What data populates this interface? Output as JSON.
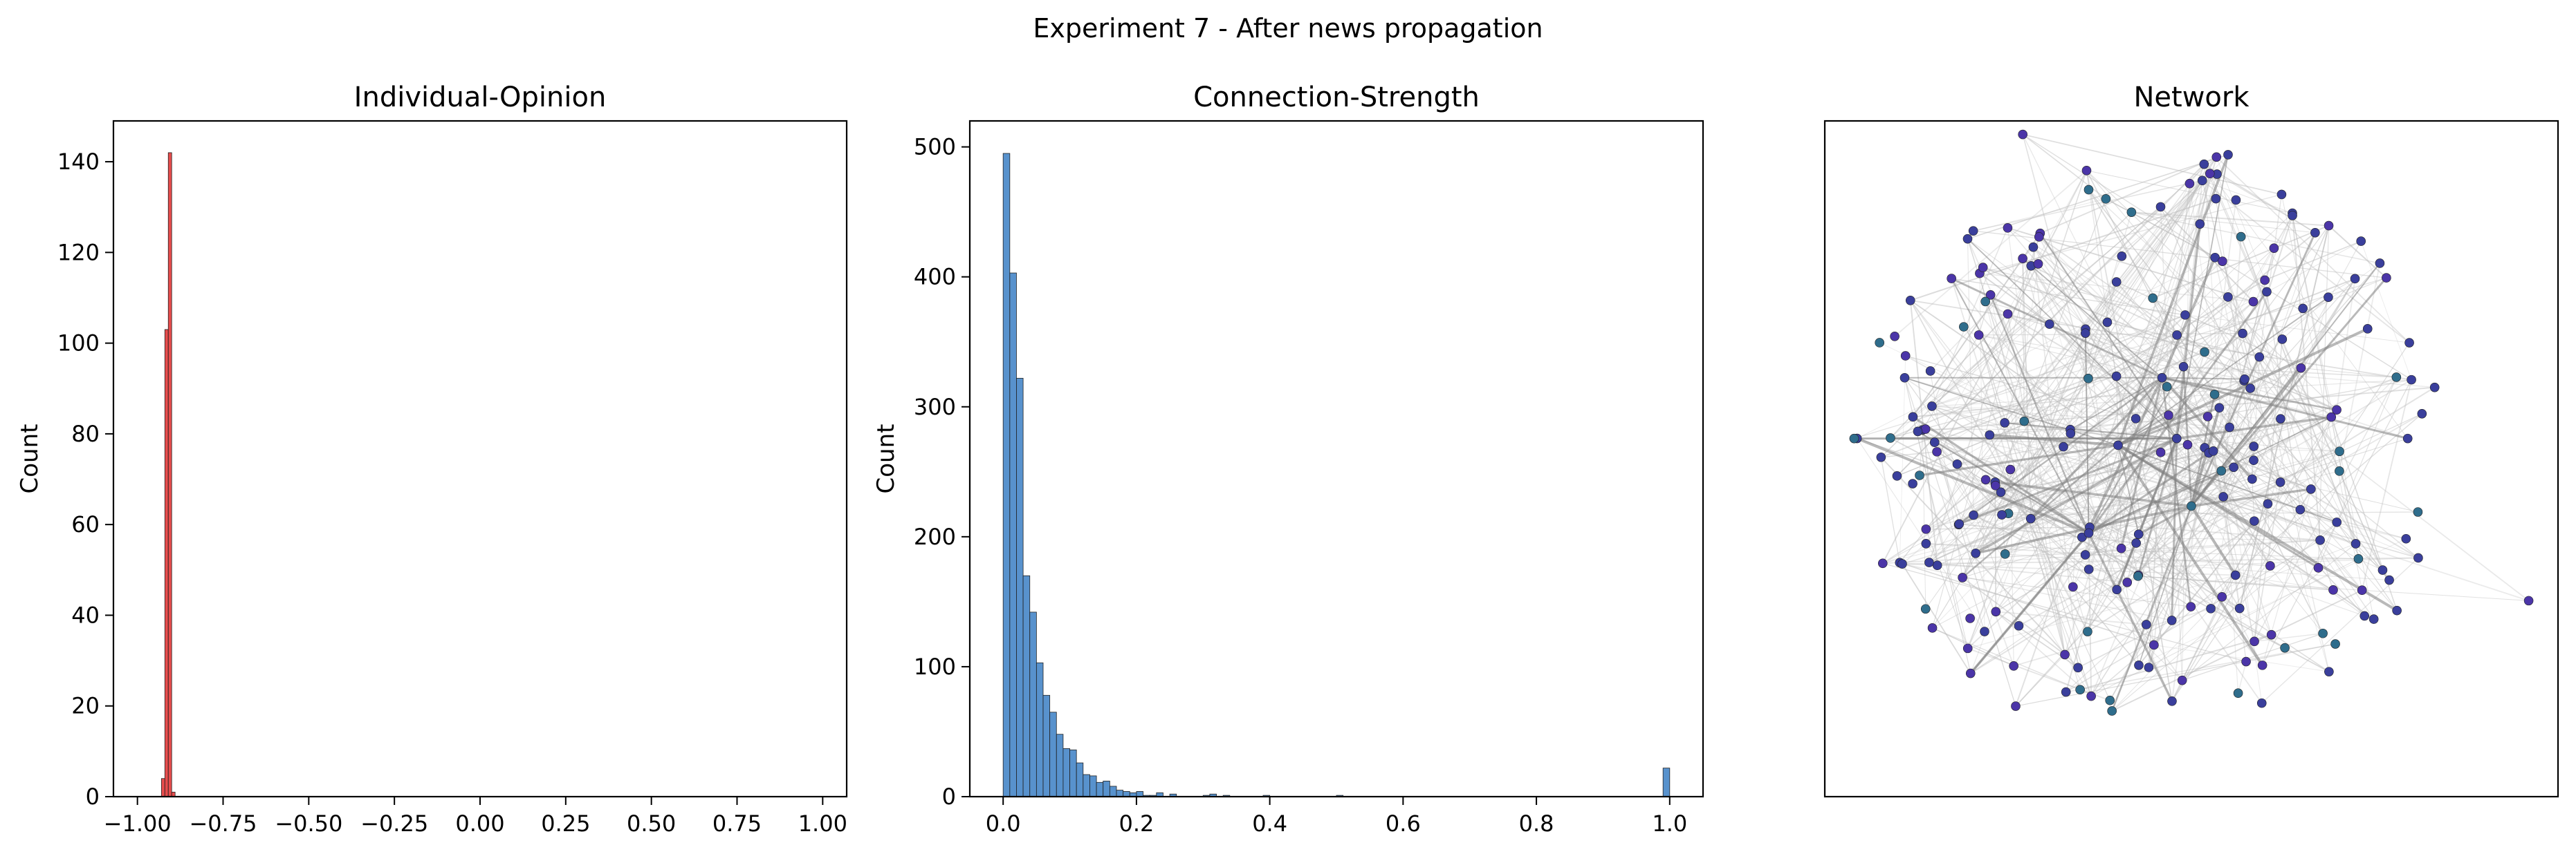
{
  "figure": {
    "title": "Experiment 7 - After news propagation"
  },
  "chart_data": [
    {
      "type": "bar",
      "title": "Individual-Opinion",
      "xlabel": "",
      "ylabel": "Count",
      "xlim": [
        -1.07,
        1.07
      ],
      "ylim": [
        0,
        149
      ],
      "xticks": [
        -1.0,
        -0.75,
        -0.5,
        -0.25,
        0.0,
        0.25,
        0.5,
        0.75,
        1.0
      ],
      "xtick_labels": [
        "−1.00",
        "−0.75",
        "−0.50",
        "−0.25",
        "0.00",
        "0.25",
        "0.50",
        "0.75",
        "1.00"
      ],
      "yticks": [
        0,
        20,
        40,
        60,
        80,
        100,
        120,
        140
      ],
      "ytick_labels": [
        "0",
        "20",
        "40",
        "60",
        "80",
        "100",
        "120",
        "140"
      ],
      "bin_start": -0.93,
      "bin_width": 0.01,
      "values": [
        4,
        103,
        142,
        1
      ],
      "color": "#e32d2d"
    },
    {
      "type": "bar",
      "title": "Connection-Strength",
      "xlabel": "",
      "ylabel": "Count",
      "xlim": [
        -0.05,
        1.05
      ],
      "ylim": [
        0,
        520
      ],
      "xticks": [
        0.0,
        0.2,
        0.4,
        0.6,
        0.8,
        1.0
      ],
      "xtick_labels": [
        "0.0",
        "0.2",
        "0.4",
        "0.6",
        "0.8",
        "1.0"
      ],
      "yticks": [
        0,
        100,
        200,
        300,
        400,
        500
      ],
      "ytick_labels": [
        "0",
        "100",
        "200",
        "300",
        "400",
        "500"
      ],
      "bin_start": 0.0,
      "bin_width": 0.01,
      "values": [
        495,
        403,
        322,
        170,
        142,
        103,
        78,
        65,
        48,
        37,
        36,
        26,
        17,
        16,
        11,
        12,
        8,
        5,
        4,
        3,
        4,
        1,
        1,
        3,
        0,
        2,
        0,
        0,
        0,
        0,
        1,
        2,
        0,
        1,
        0,
        0,
        0,
        0,
        0,
        1,
        0,
        0,
        0,
        0,
        0,
        0,
        0,
        0,
        0,
        0,
        1,
        0,
        0,
        0,
        0,
        0,
        0,
        0,
        0,
        0,
        0,
        0,
        0,
        0,
        0,
        0,
        0,
        0,
        0,
        0,
        0,
        0,
        0,
        0,
        0,
        0,
        0,
        0,
        0,
        0,
        0,
        0,
        0,
        0,
        0,
        0,
        0,
        0,
        0,
        0,
        0,
        0,
        0,
        0,
        0,
        0,
        0,
        0,
        0,
        22
      ],
      "color": "#3b7fc4"
    },
    {
      "type": "network",
      "title": "Network",
      "node_count": 220,
      "node_color": "#3a3f9c",
      "edge_color": "#808080",
      "hubs": [
        [
          0.4,
          0.48
        ],
        [
          0.48,
          0.47
        ],
        [
          0.5,
          0.57
        ],
        [
          0.36,
          0.61
        ],
        [
          0.46,
          0.38
        ]
      ]
    }
  ]
}
